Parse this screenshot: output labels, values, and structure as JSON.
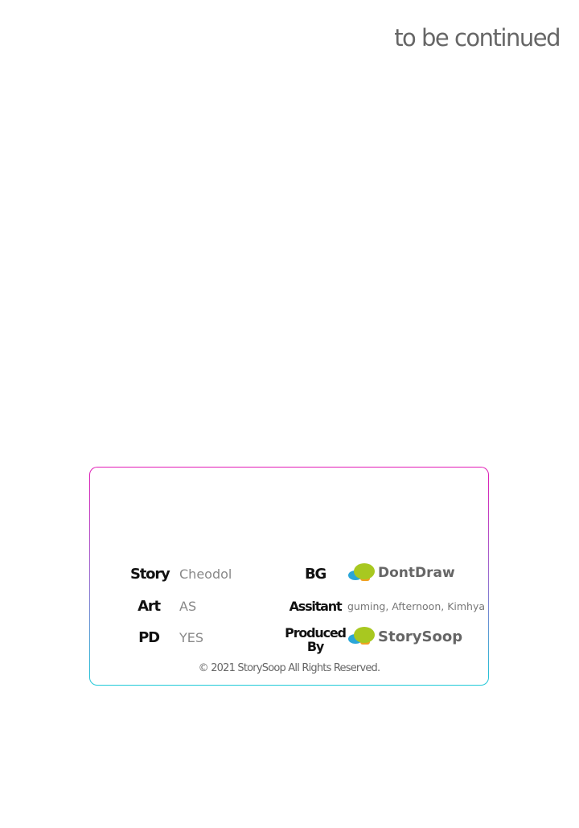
{
  "header": {
    "continued": "to be continued"
  },
  "credits": {
    "story": {
      "label": "Story",
      "value": "Cheodol"
    },
    "art": {
      "label": "Art",
      "value": "AS"
    },
    "pd": {
      "label": "PD",
      "value": "YES"
    },
    "bg": {
      "label": "BG",
      "logo_text": "DontDraw"
    },
    "assistant": {
      "label": "Assitant",
      "value": "guming, Afternoon,  Kimhya"
    },
    "produced": {
      "label_line1": "Produced",
      "label_line2": "By",
      "logo_text": "StorySoop"
    },
    "copyright": "© 2021 StorySoop All Rights Reserved."
  },
  "colors": {
    "border_top": "#e21cb6",
    "border_bottom": "#1ec9d8",
    "bubble_green": "#a8c820",
    "bubble_blue": "#2aa6d8",
    "bubble_orange": "#f0a020"
  }
}
